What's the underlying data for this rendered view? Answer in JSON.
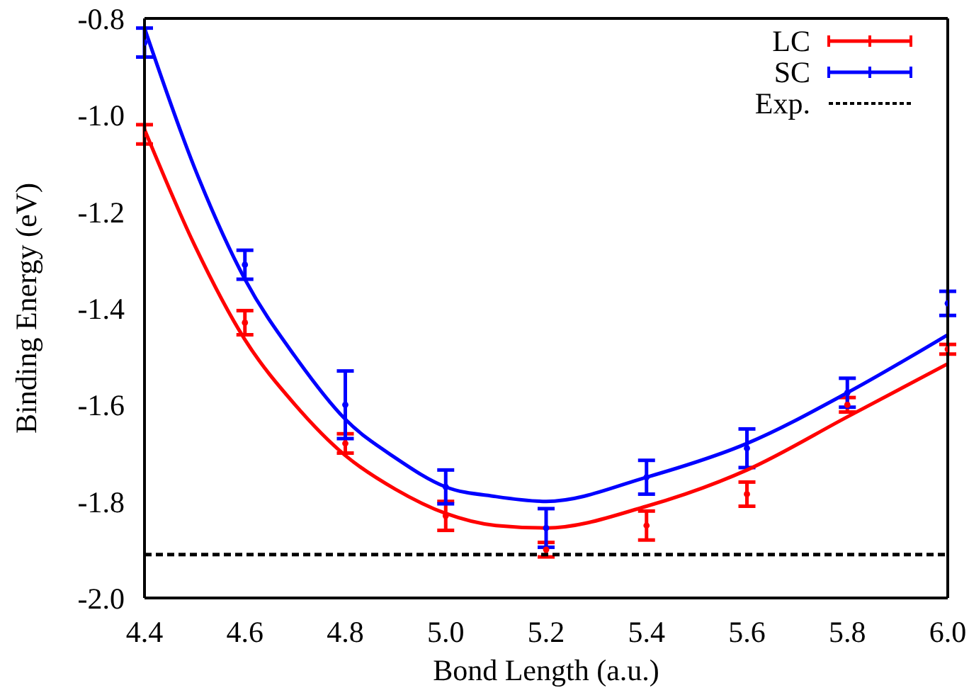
{
  "chart_data": {
    "type": "scatter",
    "xlabel": "Bond Length (a.u.)",
    "ylabel": "Binding Energy (eV)",
    "xlim": [
      4.4,
      6.0
    ],
    "ylim": [
      -2.0,
      -0.8
    ],
    "xticks": [
      {
        "value": 4.4,
        "label": "4.4"
      },
      {
        "value": 4.6,
        "label": "4.6"
      },
      {
        "value": 4.8,
        "label": "4.8"
      },
      {
        "value": 5.0,
        "label": "5.0"
      },
      {
        "value": 5.2,
        "label": "5.2"
      },
      {
        "value": 5.4,
        "label": "5.4"
      },
      {
        "value": 5.6,
        "label": "5.6"
      },
      {
        "value": 5.8,
        "label": "5.8"
      },
      {
        "value": 6.0,
        "label": "6.0"
      }
    ],
    "yticks": [
      {
        "value": -2.0,
        "label": "-2.0"
      },
      {
        "value": -1.8,
        "label": "-1.8"
      },
      {
        "value": -1.6,
        "label": "-1.6"
      },
      {
        "value": -1.4,
        "label": "-1.4"
      },
      {
        "value": -1.2,
        "label": "-1.2"
      },
      {
        "value": -1.0,
        "label": "-1.0"
      },
      {
        "value": -0.8,
        "label": "-0.8"
      }
    ],
    "legend": "top right",
    "series": [
      {
        "name": "LC",
        "marker": "circle",
        "color": "#ff0000",
        "x": [
          4.4,
          4.6,
          4.8,
          5.0,
          5.2,
          5.4,
          5.6,
          5.8,
          6.0
        ],
        "values": [
          -1.04,
          -1.43,
          -1.68,
          -1.83,
          -1.9,
          -1.85,
          -1.785,
          -1.6,
          -1.485
        ],
        "errors": [
          0.02,
          0.025,
          0.02,
          0.03,
          0.015,
          0.03,
          0.025,
          0.015,
          0.01
        ]
      },
      {
        "name": "SC",
        "marker": "circle",
        "color": "#0000ff",
        "x": [
          4.4,
          4.6,
          4.8,
          5.0,
          5.2,
          5.4,
          5.6,
          5.8,
          6.0
        ],
        "values": [
          -0.85,
          -1.31,
          -1.6,
          -1.77,
          -1.855,
          -1.75,
          -1.69,
          -1.575,
          -1.39
        ],
        "errors": [
          0.03,
          0.03,
          0.07,
          0.035,
          0.04,
          0.035,
          0.04,
          0.03,
          0.025
        ]
      },
      {
        "type": "line",
        "color": "#ff0000",
        "x": [
          4.4,
          4.5,
          4.6,
          4.7,
          4.8,
          4.9,
          5.0,
          5.1,
          5.2,
          5.4,
          5.6,
          5.8,
          6.0
        ],
        "values": [
          -1.03,
          -1.27,
          -1.465,
          -1.6,
          -1.705,
          -1.775,
          -1.825,
          -1.85,
          -1.855,
          -1.81,
          -1.735,
          -1.625,
          -1.515
        ]
      },
      {
        "type": "line",
        "color": "#0000ff",
        "x": [
          4.4,
          4.5,
          4.6,
          4.7,
          4.8,
          4.9,
          5.0,
          5.1,
          5.2,
          5.4,
          5.6,
          5.8,
          6.0
        ],
        "values": [
          -0.82,
          -1.11,
          -1.34,
          -1.5,
          -1.63,
          -1.71,
          -1.77,
          -1.79,
          -1.8,
          -1.75,
          -1.68,
          -1.575,
          -1.455
        ]
      },
      {
        "name": "Exp.",
        "type": "line",
        "line_style": "dashed",
        "color": "#000000",
        "x": [
          4.4,
          6.0
        ],
        "values": [
          -1.91,
          -1.91
        ]
      }
    ]
  }
}
